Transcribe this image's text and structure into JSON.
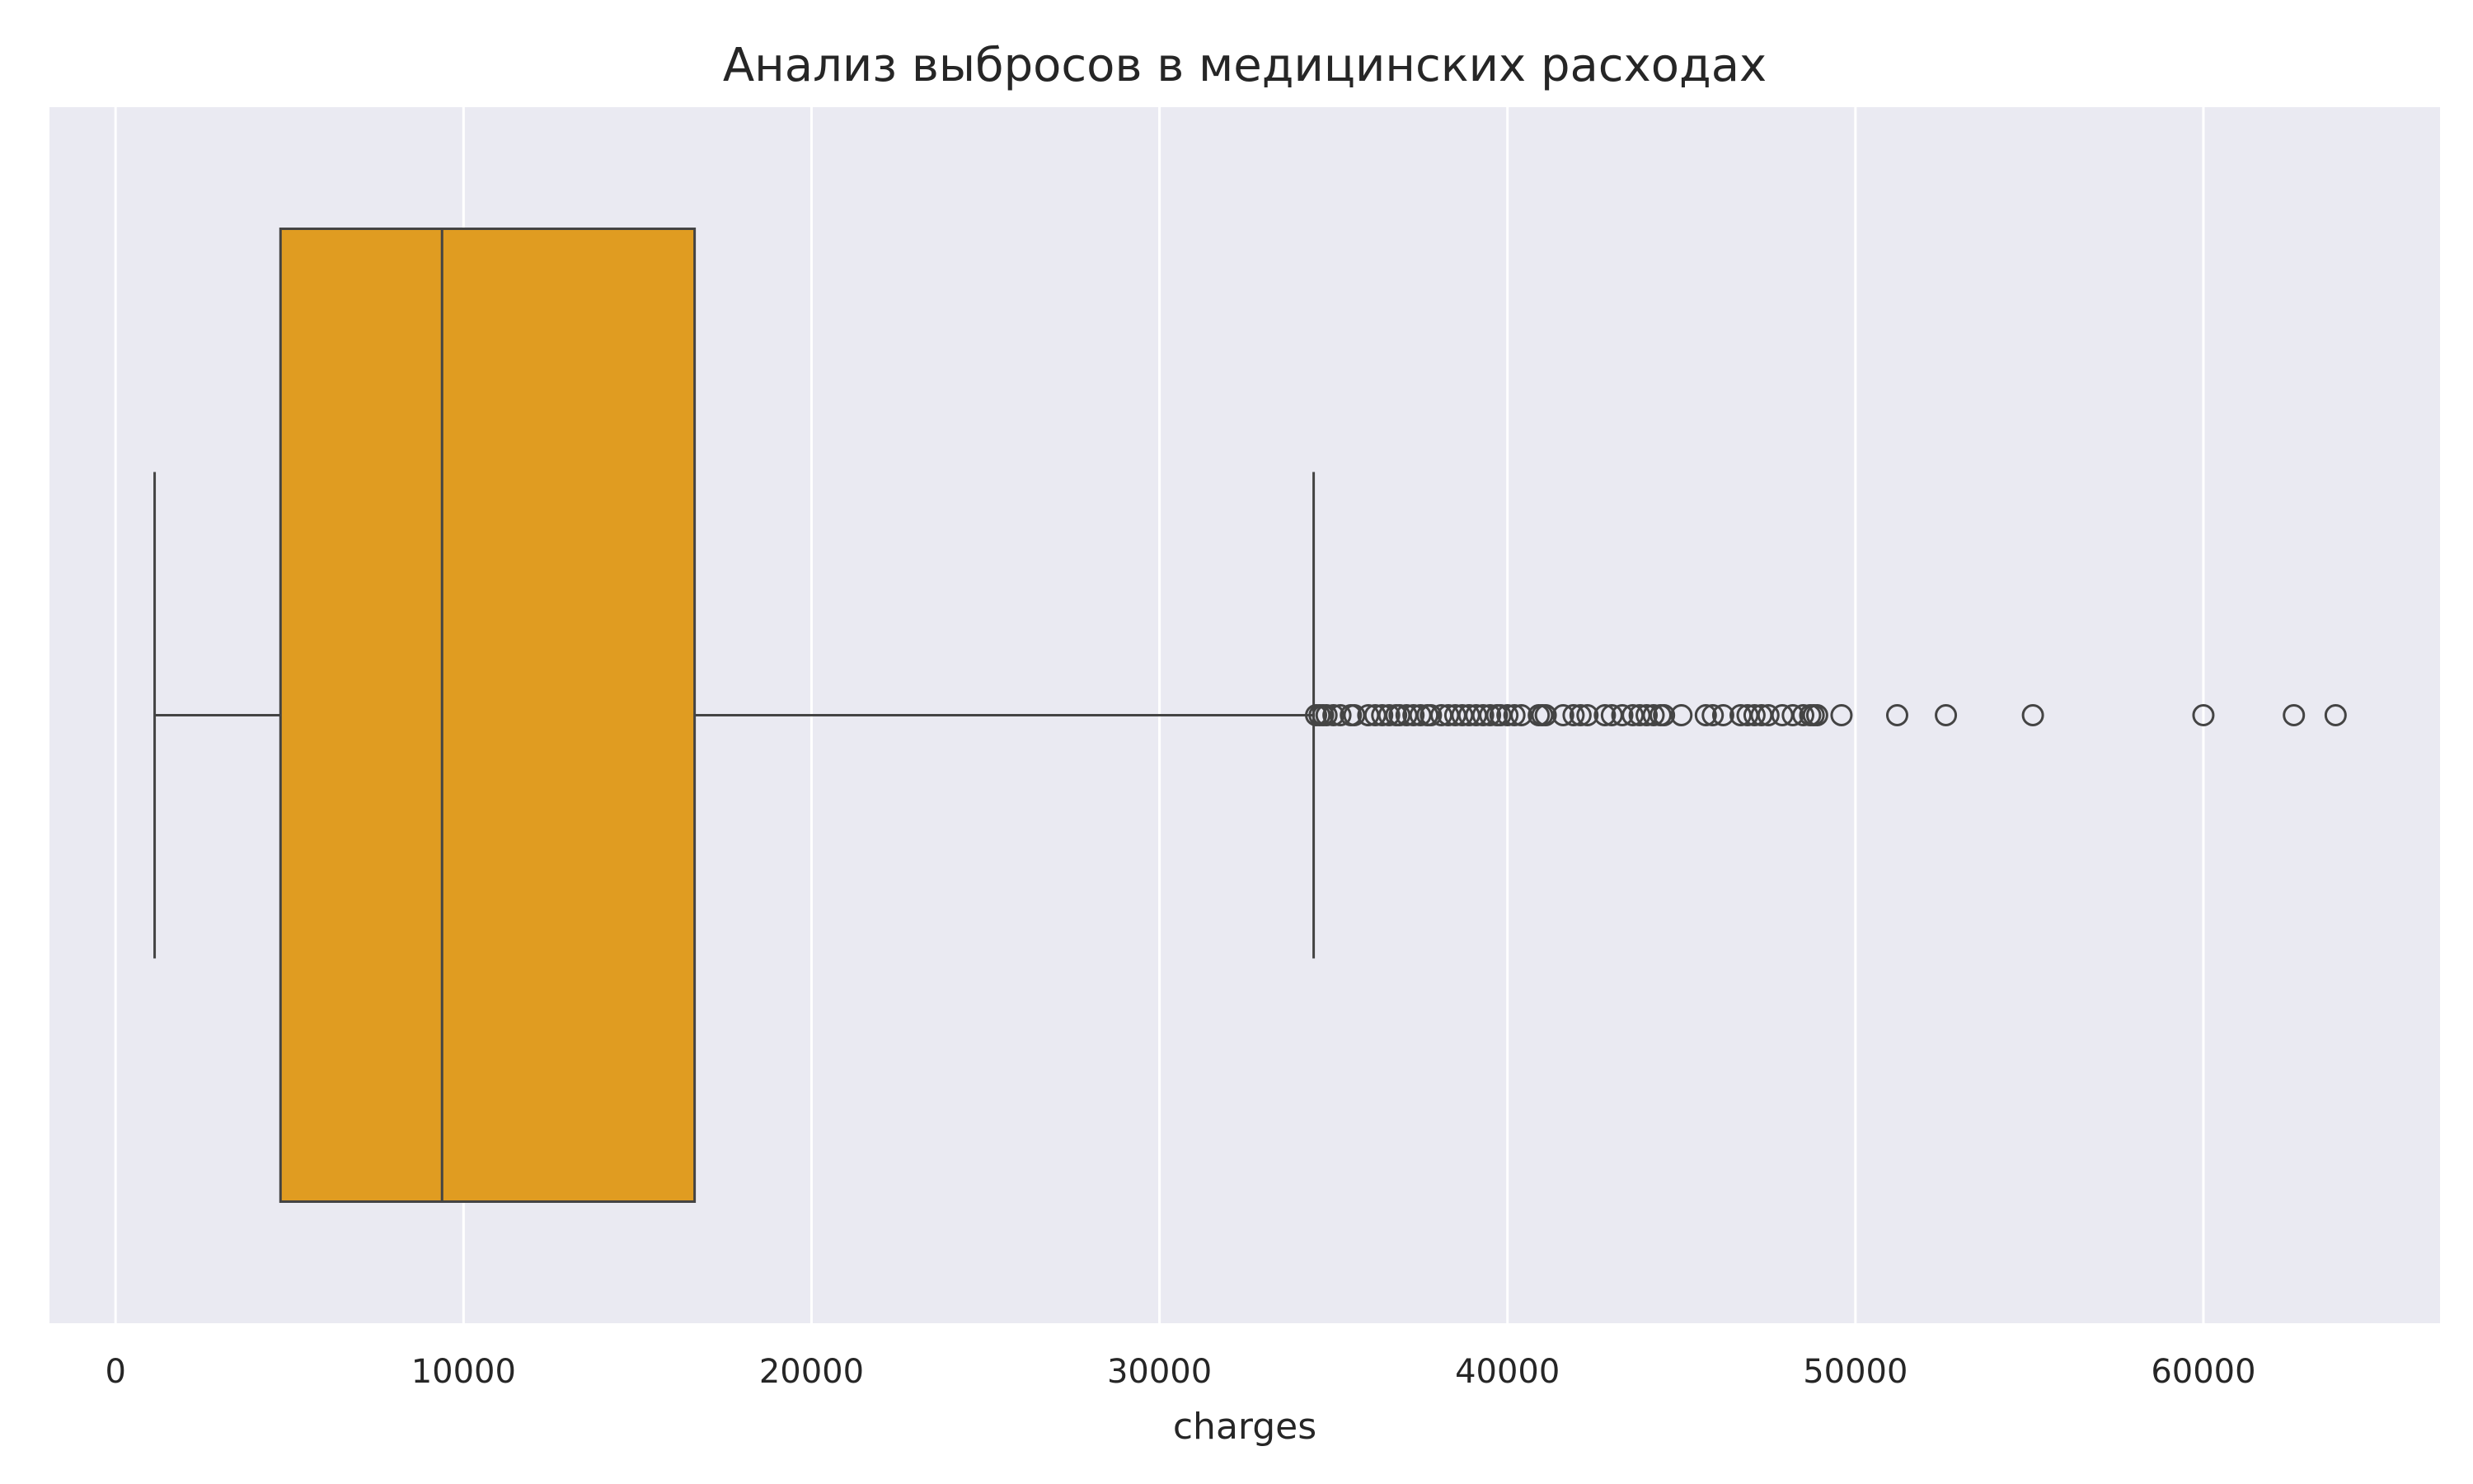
{
  "chart_data": {
    "type": "boxplot",
    "orientation": "horizontal",
    "title": "Анализ выбросов в медицинских расходах",
    "xlabel": "charges",
    "ylabel": "",
    "xlim": [
      -1900,
      66800
    ],
    "xticks": [
      0,
      10000,
      20000,
      30000,
      40000,
      50000,
      60000
    ],
    "xtick_labels": [
      "0",
      "10000",
      "20000",
      "30000",
      "40000",
      "50000",
      "60000"
    ],
    "grid": true,
    "box": {
      "whisker_low": 1122,
      "q1": 4740,
      "median": 9382,
      "q3": 16640,
      "whisker_high": 34430
    },
    "outliers": [
      34500,
      34600,
      34700,
      34800,
      35000,
      35200,
      35500,
      35600,
      36000,
      36200,
      36400,
      36600,
      36800,
      36900,
      37100,
      37300,
      37500,
      37700,
      37800,
      38100,
      38300,
      38500,
      38700,
      38900,
      39100,
      39300,
      39500,
      39700,
      39800,
      40000,
      40200,
      40400,
      40900,
      41000,
      41100,
      41600,
      41900,
      42100,
      42300,
      42800,
      43000,
      43300,
      43600,
      43800,
      44000,
      44200,
      44400,
      44500,
      45000,
      45700,
      45900,
      46200,
      46700,
      46900,
      47100,
      47300,
      47500,
      47900,
      48200,
      48500,
      48700,
      48800,
      48900,
      49600,
      51200,
      52600,
      55100,
      60000,
      62600,
      63800
    ],
    "colors": {
      "box_fill": "#e09c21",
      "line": "#444444",
      "plot_background": "#eaeaf2",
      "grid": "#ffffff"
    }
  }
}
